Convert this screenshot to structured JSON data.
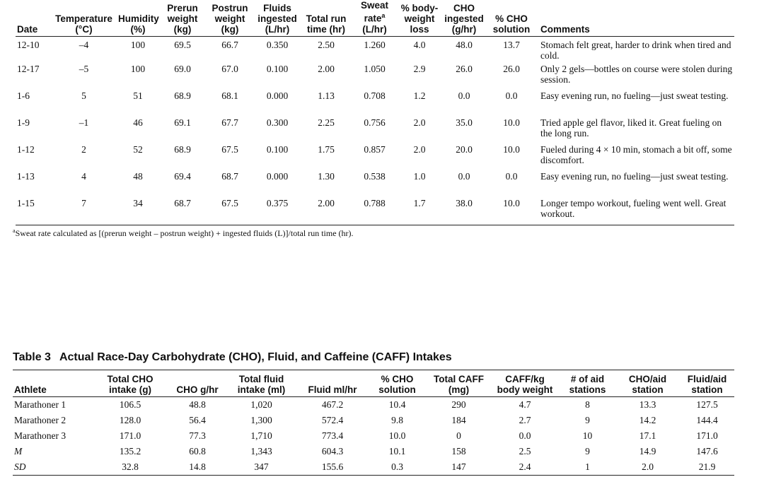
{
  "table2": {
    "headers": [
      [
        "Date"
      ],
      [
        "Temperature",
        "(°C)"
      ],
      [
        "Humidity",
        "(%)"
      ],
      [
        "Prerun",
        "weight",
        "(kg)"
      ],
      [
        "Postrun",
        "weight",
        "(kg)"
      ],
      [
        "Fluids",
        "ingested",
        "(L/hr)"
      ],
      [
        "Total run",
        "time (hr)"
      ],
      [
        "Sweat",
        "rate",
        "(L/hr)"
      ],
      [
        "% body-",
        "weight",
        "loss"
      ],
      [
        "CHO",
        "ingested",
        "(g/hr)"
      ],
      [
        "% CHO",
        "solution"
      ],
      [
        "Comments"
      ]
    ],
    "sweat_rate_marker": "a",
    "rows": [
      [
        "12-10",
        "–4",
        "100",
        "69.5",
        "66.7",
        "0.350",
        "2.50",
        "1.260",
        "4.0",
        "48.0",
        "13.7",
        "Stomach felt great, harder to drink when tired and cold."
      ],
      [
        "12-17",
        "–5",
        "100",
        "69.0",
        "67.0",
        "0.100",
        "2.00",
        "1.050",
        "2.9",
        "26.0",
        "26.0",
        "Only 2 gels—bottles on course were stolen during session."
      ],
      [
        "1-6",
        "5",
        "51",
        "68.9",
        "68.1",
        "0.000",
        "1.13",
        "0.708",
        "1.2",
        "0.0",
        "0.0",
        "Easy evening run, no fueling—just sweat testing."
      ],
      [
        "1-9",
        "–1",
        "46",
        "69.1",
        "67.7",
        "0.300",
        "2.25",
        "0.756",
        "2.0",
        "35.0",
        "10.0",
        "Tried apple gel flavor, liked it. Great fueling on the long run."
      ],
      [
        "1-12",
        "2",
        "52",
        "68.9",
        "67.5",
        "0.100",
        "1.75",
        "0.857",
        "2.0",
        "20.0",
        "10.0",
        "Fueled during 4 × 10 min, stomach a bit off, some discomfort."
      ],
      [
        "1-13",
        "4",
        "48",
        "69.4",
        "68.7",
        "0.000",
        "1.30",
        "0.538",
        "1.0",
        "0.0",
        "0.0",
        "Easy evening run, no fueling—just sweat testing."
      ],
      [
        "1-15",
        "7",
        "34",
        "68.7",
        "67.5",
        "0.375",
        "2.00",
        "0.788",
        "1.7",
        "38.0",
        "10.0",
        "Longer tempo workout, fueling went well. Great workout."
      ]
    ],
    "footnote_marker": "a",
    "footnote": "Sweat rate calculated as [(prerun weight – postrun weight) + ingested fluids (L)]/total run time (hr)."
  },
  "table3": {
    "label": "Table 3",
    "title": "Actual Race-Day Carbohydrate (CHO), Fluid, and Caffeine (CAFF) Intakes",
    "headers": [
      [
        "Athlete"
      ],
      [
        "Total CHO",
        "intake (g)"
      ],
      [
        "CHO g/hr"
      ],
      [
        "Total fluid",
        "intake (ml)"
      ],
      [
        "Fluid ml/hr"
      ],
      [
        "% CHO",
        "solution"
      ],
      [
        "Total CAFF",
        "(mg)"
      ],
      [
        "CAFF/kg",
        "body weight"
      ],
      [
        "# of aid",
        "stations"
      ],
      [
        "CHO/aid",
        "station"
      ],
      [
        "Fluid/aid",
        "station"
      ]
    ],
    "rows": [
      [
        "Marathoner 1",
        "106.5",
        "48.8",
        "1,020",
        "467.2",
        "10.4",
        "290",
        "4.7",
        "8",
        "13.3",
        "127.5"
      ],
      [
        "Marathoner 2",
        "128.0",
        "56.4",
        "1,300",
        "572.4",
        "9.8",
        "184",
        "2.7",
        "9",
        "14.2",
        "144.4"
      ],
      [
        "Marathoner 3",
        "171.0",
        "77.3",
        "1,710",
        "773.4",
        "10.0",
        "0",
        "0.0",
        "10",
        "17.1",
        "171.0"
      ],
      [
        "M",
        "135.2",
        "60.8",
        "1,343",
        "604.3",
        "10.1",
        "158",
        "2.5",
        "9",
        "14.9",
        "147.6"
      ],
      [
        "SD",
        "32.8",
        "14.8",
        "347",
        "155.6",
        "0.3",
        "147",
        "2.4",
        "1",
        "2.0",
        "21.9"
      ]
    ]
  }
}
